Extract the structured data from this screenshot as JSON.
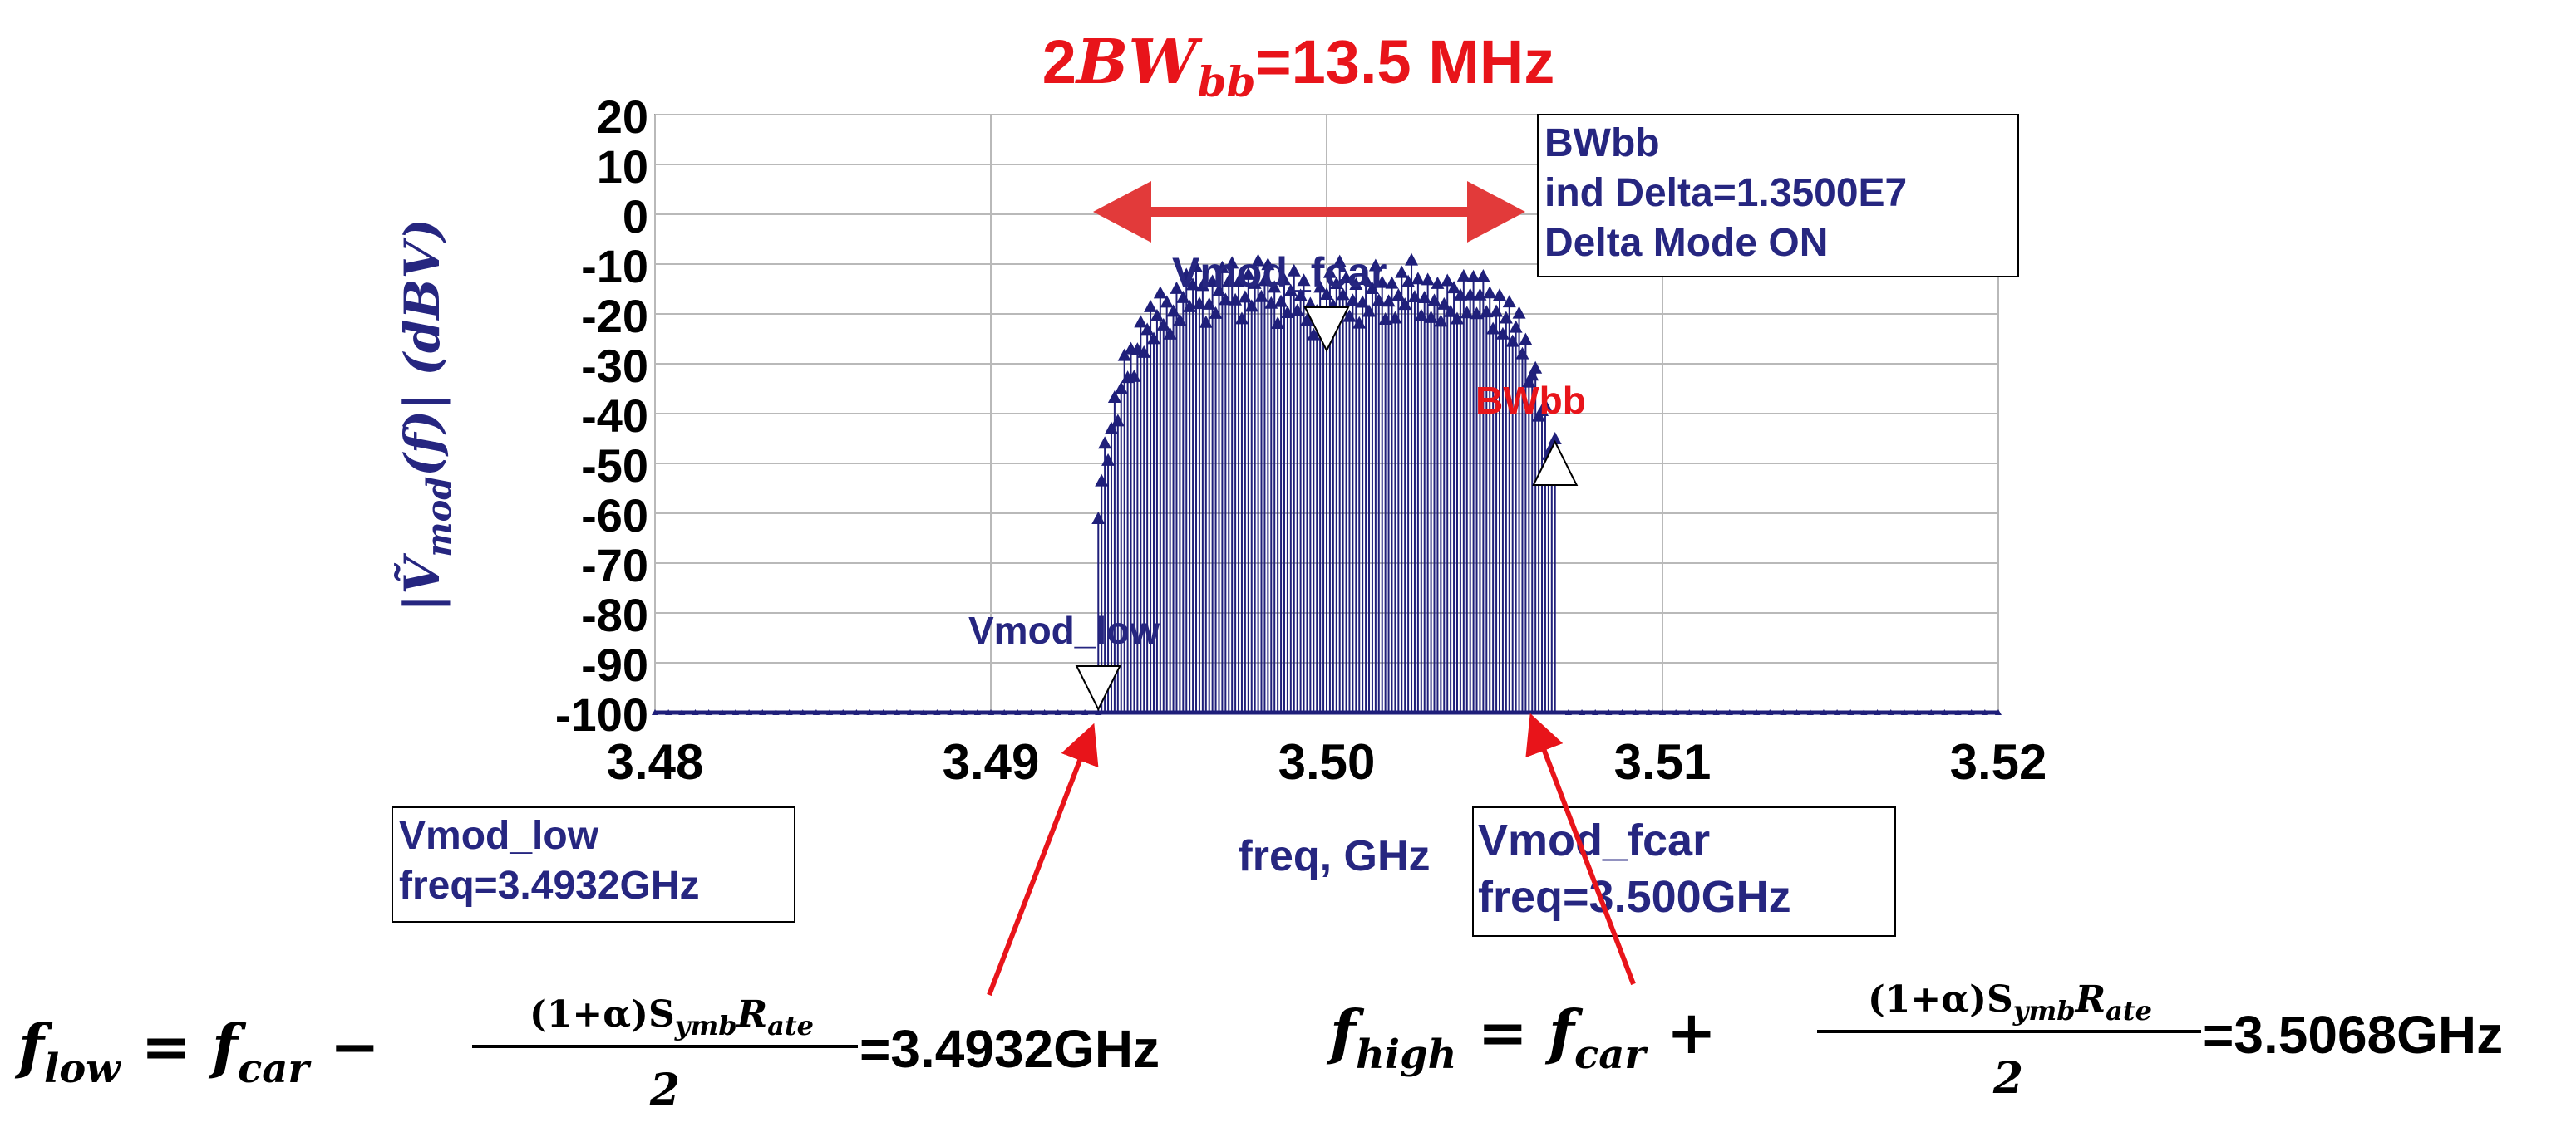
{
  "colors": {
    "trace": "#1f1f7a",
    "annotation": "#e23a3a",
    "accent_red": "#e8141a",
    "axis_text": "#000000",
    "label_text": "#262680",
    "grid": "#b9b9b9"
  },
  "title": {
    "prefix": "2",
    "symbol": "BW",
    "subscript": "bb",
    "value": "=13.5 MHz"
  },
  "chart_data": {
    "type": "line",
    "xlabel": "freq, GHz",
    "ylabel": {
      "base": "Ṽ",
      "subscript": "mod",
      "rest": "(f)| (dBV)",
      "open_bar": "|"
    },
    "xlim": [
      3.48,
      3.52
    ],
    "ylim": [
      -100,
      20
    ],
    "x_ticks": [
      "3.48",
      "3.49",
      "3.50",
      "3.51",
      "3.52"
    ],
    "y_ticks": [
      "20",
      "10",
      "0",
      "-10",
      "-20",
      "-30",
      "-40",
      "-50",
      "-60",
      "-70",
      "-80",
      "-90",
      "-100"
    ],
    "grid": true,
    "noise_floor_dBV": -100,
    "band": {
      "f_low": 3.4932,
      "f_high": 3.5068,
      "f_car": 3.5
    },
    "spectrum_envelope": [
      [
        3.4932,
        -56
      ],
      [
        3.4935,
        -45
      ],
      [
        3.4938,
        -38
      ],
      [
        3.4941,
        -30
      ],
      [
        3.4945,
        -24
      ],
      [
        3.495,
        -21
      ],
      [
        3.4955,
        -18
      ],
      [
        3.496,
        -15
      ],
      [
        3.4965,
        -17
      ],
      [
        3.497,
        -14
      ],
      [
        3.4975,
        -16
      ],
      [
        3.498,
        -13
      ],
      [
        3.4985,
        -17
      ],
      [
        3.499,
        -15
      ],
      [
        3.4995,
        -20
      ],
      [
        3.5,
        -16
      ],
      [
        3.5005,
        -14
      ],
      [
        3.501,
        -18
      ],
      [
        3.5015,
        -15
      ],
      [
        3.502,
        -17
      ],
      [
        3.5025,
        -14
      ],
      [
        3.503,
        -16
      ],
      [
        3.5035,
        -19
      ],
      [
        3.504,
        -15
      ],
      [
        3.5045,
        -17
      ],
      [
        3.505,
        -18
      ],
      [
        3.5055,
        -22
      ],
      [
        3.506,
        -28
      ],
      [
        3.5063,
        -36
      ],
      [
        3.5066,
        -45
      ],
      [
        3.5068,
        -50
      ]
    ],
    "markers": [
      {
        "name": "Vmod_low",
        "x": 3.4932,
        "y": -95,
        "direction": "down",
        "label": "Vmod_low"
      },
      {
        "name": "Vmod_fcar",
        "x": 3.5,
        "y": -23,
        "direction": "down",
        "label": "Vmod_fcar"
      },
      {
        "name": "BWbb",
        "x": 3.5068,
        "y": -50,
        "direction": "up",
        "label": "BWbb"
      }
    ]
  },
  "readouts": {
    "bwbb": {
      "line1": "BWbb",
      "line2": "ind Delta=1.3500E7",
      "line3": "Delta Mode ON"
    },
    "vmod_low": {
      "line1": "Vmod_low",
      "line2": "freq=3.4932GHz"
    },
    "vmod_fcar": {
      "line1": "Vmod_fcar",
      "line2": "freq=3.500GHz"
    }
  },
  "equations": {
    "low": {
      "lhs": "f",
      "lhs_sub": "low",
      "eq": " = ",
      "car": "f",
      "car_sub": "car",
      "op": " − ",
      "num_prefix": "(1+α)S",
      "num_sub1": "ymb",
      "num_R": "R",
      "num_sub2": "ate",
      "den": "2",
      "result": "=3.4932GHz"
    },
    "high": {
      "lhs": "f",
      "lhs_sub": "high",
      "eq": " = ",
      "car": "f",
      "car_sub": "car",
      "op": " + ",
      "num_prefix": "(1+α)S",
      "num_sub1": "ymb",
      "num_R": "R",
      "num_sub2": "ate",
      "den": "2",
      "result": "=3.5068GHz"
    }
  }
}
